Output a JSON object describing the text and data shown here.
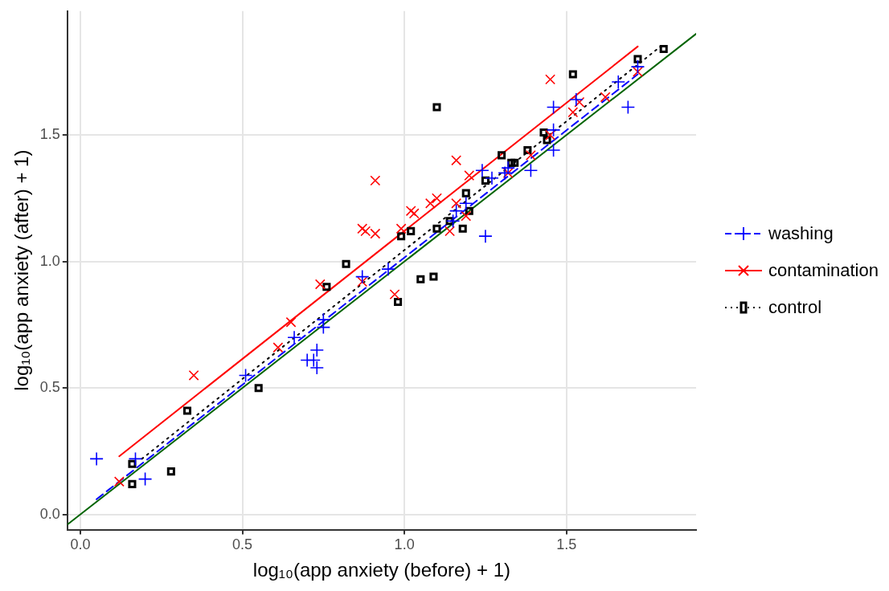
{
  "chart_data": {
    "type": "scatter",
    "xlabel": "log₁₀(app anxiety (before) + 1)",
    "ylabel": "log₁₀(app anxiety (after) + 1)",
    "xlim": [
      -0.04,
      1.9
    ],
    "ylim": [
      -0.06,
      1.99
    ],
    "xticks": [
      {
        "value": 0,
        "label": "0.0"
      },
      0.5,
      {
        "value": 1,
        "label": "1.0"
      },
      1.5
    ],
    "yticks": [
      {
        "value": 0,
        "label": "0.0"
      },
      0.5,
      {
        "value": 1,
        "label": "1.0"
      },
      1.5
    ],
    "grid": true,
    "legend": "right",
    "series": [
      {
        "name": "washing",
        "color": "#0000ff",
        "marker": "cross",
        "line_style": "dashed",
        "x": [
          0.05,
          0.17,
          0.2,
          0.51,
          0.66,
          0.87,
          0.95,
          0.75,
          0.75,
          0.73,
          0.7,
          0.72,
          0.73,
          1.16,
          1.15,
          1.19,
          1.25,
          1.24,
          1.46,
          1.53,
          1.69,
          1.66,
          1.72,
          1.46,
          1.46,
          1.39,
          1.32,
          1.27,
          1.31
        ],
        "values": [
          0.22,
          0.22,
          0.14,
          0.55,
          0.7,
          0.94,
          0.97,
          0.77,
          0.74,
          0.65,
          0.61,
          0.61,
          0.58,
          1.2,
          1.16,
          1.23,
          1.1,
          1.36,
          1.61,
          1.64,
          1.61,
          1.71,
          1.77,
          1.44,
          1.52,
          1.36,
          1.37,
          1.33,
          1.35
        ]
      },
      {
        "name": "contamination",
        "color": "#ff0000",
        "marker": "x",
        "line_style": "solid",
        "x": [
          0.12,
          0.35,
          0.61,
          0.65,
          0.74,
          0.87,
          0.87,
          0.88,
          0.91,
          0.91,
          0.97,
          0.99,
          1.02,
          1.03,
          1.08,
          1.1,
          1.14,
          1.16,
          1.19,
          1.2,
          1.16,
          1.45,
          1.52,
          1.54,
          1.62,
          1.72,
          1.45,
          1.39,
          1.32
        ],
        "values": [
          0.13,
          0.55,
          0.66,
          0.76,
          0.91,
          0.92,
          1.13,
          1.12,
          1.11,
          1.32,
          0.87,
          1.13,
          1.2,
          1.19,
          1.23,
          1.25,
          1.12,
          1.23,
          1.18,
          1.34,
          1.4,
          1.72,
          1.59,
          1.63,
          1.65,
          1.75,
          1.5,
          1.42,
          1.35
        ]
      },
      {
        "name": "control",
        "color": "#000000",
        "marker": "square",
        "line_style": "dotted",
        "x": [
          0.16,
          0.16,
          0.28,
          0.33,
          0.55,
          0.82,
          0.76,
          0.98,
          1.05,
          1.09,
          0.99,
          1.02,
          1.1,
          1.14,
          1.18,
          1.2,
          1.19,
          1.25,
          1.1,
          1.52,
          1.8,
          1.72,
          1.43,
          1.44,
          1.3,
          1.33,
          1.34,
          1.38
        ],
        "values": [
          0.2,
          0.12,
          0.17,
          0.41,
          0.5,
          0.99,
          0.9,
          0.84,
          0.93,
          0.94,
          1.1,
          1.12,
          1.13,
          1.16,
          1.13,
          1.2,
          1.27,
          1.32,
          1.61,
          1.74,
          1.84,
          1.8,
          1.51,
          1.48,
          1.42,
          1.39,
          1.39,
          1.44
        ]
      },
      {
        "type": "line",
        "color": "#0000ff",
        "line_style": "dashed",
        "marker": "none",
        "x": [
          0.05,
          1.72
        ],
        "values": [
          0.06,
          1.74
        ]
      },
      {
        "type": "line",
        "color": "#ff0000",
        "line_style": "solid",
        "marker": "none",
        "x": [
          0.12,
          1.72
        ],
        "values": [
          0.23,
          1.85
        ]
      },
      {
        "type": "line",
        "color": "#000000",
        "line_style": "dotted",
        "marker": "none",
        "x": [
          0.19,
          1.8
        ],
        "values": [
          0.22,
          1.86
        ]
      },
      {
        "type": "line",
        "color": "#006400",
        "line_style": "solid",
        "marker": "none",
        "x": [
          -0.04,
          1.9
        ],
        "values": [
          -0.04,
          1.9
        ]
      }
    ]
  }
}
